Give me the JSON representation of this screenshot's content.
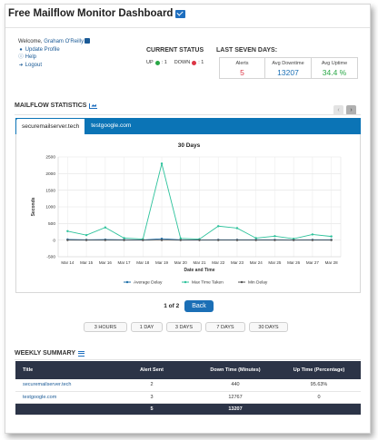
{
  "page": {
    "title": "Free Mailflow Monitor Dashboard"
  },
  "profile": {
    "welcome_prefix": "Welcome,",
    "user_name": "Graham O'Reilly",
    "links": [
      "Update Profile",
      "Help",
      "Logout"
    ]
  },
  "current_status": {
    "heading": "CURRENT STATUS",
    "up_label": "UP",
    "up_count": ": 1",
    "down_label": "DOWN",
    "down_count": ": 1",
    "colors": {
      "up": "#28a745",
      "down": "#dc3545"
    }
  },
  "last_seven_days": {
    "heading": "LAST SEVEN DAYS:",
    "alerts_label": "Alerts",
    "alerts_value": "5",
    "downtime_label": "Avg Downtime",
    "downtime_value": "13207",
    "uptime_label": "Avg Uptime",
    "uptime_value": "34.4 %",
    "colors": {
      "alerts": "#dc3545",
      "downtime": "#1a6fb5",
      "uptime": "#28a745"
    }
  },
  "mailflow_statistics": {
    "heading": "MAILFLOW STATISTICS",
    "nav_prev": "‹",
    "nav_next": "›",
    "tabs": [
      "securemailserver.tech",
      "testgoogle.com"
    ],
    "active_tab": 0
  },
  "chart_data": {
    "type": "line",
    "title": "30 Days",
    "xlabel": "Date and Time",
    "ylabel": "Seconds",
    "ylim": [
      -500,
      2500
    ],
    "yticks": [
      -500,
      0,
      500,
      1000,
      1500,
      2000,
      2500
    ],
    "categories": [
      "Mar 14",
      "Mar 15",
      "Mar 16",
      "Mar 17",
      "Mar 18",
      "Mar 19",
      "Mar 20",
      "Mar 21",
      "Mar 22",
      "Mar 23",
      "Mar 24",
      "Mar 25",
      "Mar 26",
      "Mar 27",
      "Mar 28"
    ],
    "grid": true,
    "legend_position": "bottom",
    "series": [
      {
        "name": "Average Delay",
        "color": "#1f6fa8",
        "values": [
          20,
          10,
          15,
          10,
          5,
          40,
          10,
          5,
          10,
          10,
          10,
          10,
          5,
          10,
          10
        ]
      },
      {
        "name": "Max Time Taken",
        "color": "#2cc29b",
        "values": [
          270,
          150,
          380,
          60,
          30,
          2300,
          50,
          30,
          420,
          360,
          60,
          120,
          40,
          170,
          110
        ]
      },
      {
        "name": "Min Delay",
        "color": "#555555",
        "values": [
          0,
          0,
          0,
          0,
          0,
          0,
          0,
          0,
          0,
          0,
          0,
          0,
          0,
          0,
          0
        ]
      }
    ]
  },
  "pager": {
    "text": "1 of 2",
    "back_label": "Back"
  },
  "ranges": [
    "3 HOURS",
    "1 DAY",
    "3 DAYS",
    "7 DAYS",
    "30 DAYS"
  ],
  "weekly_summary": {
    "heading": "WEEKLY SUMMARY",
    "columns": [
      "Title",
      "Alert Sent",
      "Down Time (Minutes)",
      "Up Time (Percentage)"
    ],
    "rows": [
      {
        "title": "securemailserver.tech",
        "alerts": "2",
        "down": "440",
        "up": "95.63%"
      },
      {
        "title": "testgoogle.com",
        "alerts": "3",
        "down": "12767",
        "up": "0"
      }
    ],
    "total": {
      "alerts": "5",
      "down": "13207"
    }
  }
}
